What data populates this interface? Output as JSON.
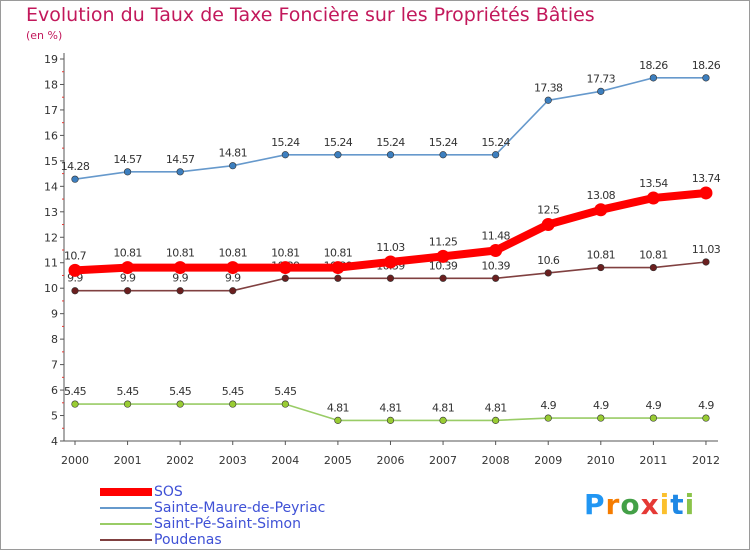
{
  "header": {
    "title": "Evolution du Taux de Taxe Foncière sur les Propriétés Bâties",
    "subtitle": "(en %)"
  },
  "logo": {
    "letters": [
      "P",
      "r",
      "o",
      "x",
      "i",
      "t",
      "i"
    ],
    "colors": [
      "#2196f3",
      "#f57c00",
      "#43a047",
      "#e53935",
      "#fbc02d",
      "#1e88e5",
      "#8bc34a"
    ]
  },
  "chart_data": {
    "type": "line",
    "x": [
      "2000",
      "2001",
      "2002",
      "2003",
      "2004",
      "2005",
      "2006",
      "2007",
      "2008",
      "2009",
      "2010",
      "2011",
      "2012"
    ],
    "ylim": [
      4,
      19
    ],
    "yticks": [
      4,
      5,
      6,
      7,
      8,
      9,
      10,
      11,
      12,
      13,
      14,
      15,
      16,
      17,
      18,
      19
    ],
    "grid": false,
    "legend_position": "bottom-left",
    "series": [
      {
        "name": "Sainte-Maure-de-Peyriac",
        "color": "#6699cc",
        "values": [
          14.28,
          14.57,
          14.57,
          14.81,
          15.24,
          15.24,
          15.24,
          15.24,
          15.24,
          17.38,
          17.73,
          18.26,
          18.26
        ],
        "labels": [
          "14.28",
          "14.57",
          "14.57",
          "14.81",
          "15.24",
          "15.24",
          "15.24",
          "15.24",
          "15.24",
          "17.38",
          "17.73",
          "18.26",
          "18.26"
        ]
      },
      {
        "name": "Saint-Pé-Saint-Simon",
        "color": "#99cc66",
        "values": [
          5.45,
          5.45,
          5.45,
          5.45,
          5.45,
          4.81,
          4.81,
          4.81,
          4.81,
          4.9,
          4.9,
          4.9,
          4.9
        ],
        "labels": [
          "5.45",
          "5.45",
          "5.45",
          "5.45",
          "5.45",
          "4.81",
          "4.81",
          "4.81",
          "4.81",
          "4.9",
          "4.9",
          "4.9",
          "4.9"
        ]
      },
      {
        "name": "Poudenas",
        "color": "#804040",
        "values": [
          9.9,
          9.9,
          9.9,
          9.9,
          10.39,
          10.39,
          10.39,
          10.39,
          10.39,
          10.6,
          10.81,
          10.81,
          11.03
        ],
        "labels": [
          "9.9",
          "9.9",
          "9.9",
          "9.9",
          "10.39",
          "10.39",
          "10.39",
          "10.39",
          "10.39",
          "10.6",
          "10.81",
          "10.81",
          "11.03"
        ]
      },
      {
        "name": "SOS",
        "color": "#ff0000",
        "values": [
          10.7,
          10.81,
          10.81,
          10.81,
          10.81,
          10.81,
          11.03,
          11.25,
          11.48,
          12.5,
          13.08,
          13.54,
          13.74
        ],
        "labels": [
          "10.7",
          "10.81",
          "10.81",
          "10.81",
          "10.81",
          "10.81",
          "11.03",
          "11.25",
          "11.48",
          "12.5",
          "13.08",
          "13.54",
          "13.74"
        ]
      }
    ],
    "legend": [
      {
        "name": "SOS",
        "color": "#ff0000"
      },
      {
        "name": "Sainte-Maure-de-Peyriac",
        "color": "#6699cc"
      },
      {
        "name": "Saint-Pé-Saint-Simon",
        "color": "#99cc66"
      },
      {
        "name": "Poudenas",
        "color": "#804040"
      }
    ]
  }
}
